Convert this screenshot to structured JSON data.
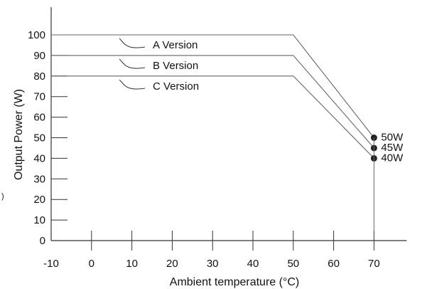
{
  "chart_data": {
    "type": "line",
    "xlabel": "Ambient temperature (°C)",
    "ylabel": "Output Power (W)",
    "xlim": [
      -10,
      70
    ],
    "ylim": [
      0,
      100
    ],
    "x_ticks": [
      -10,
      0,
      10,
      20,
      30,
      40,
      50,
      60,
      70
    ],
    "y_ticks": [
      0,
      10,
      20,
      30,
      40,
      50,
      60,
      70,
      80,
      90,
      100
    ],
    "grid": false,
    "series": [
      {
        "name": "A Version",
        "x": [
          -10,
          50,
          70
        ],
        "y": [
          100,
          100,
          50
        ],
        "end_label": "50W"
      },
      {
        "name": "B Version",
        "x": [
          -10,
          50,
          70
        ],
        "y": [
          90,
          90,
          45
        ],
        "end_label": "45W"
      },
      {
        "name": "C Version",
        "x": [
          -10,
          50,
          70
        ],
        "y": [
          80,
          80,
          40
        ],
        "end_label": "40W"
      }
    ],
    "stray_mark": ")"
  }
}
